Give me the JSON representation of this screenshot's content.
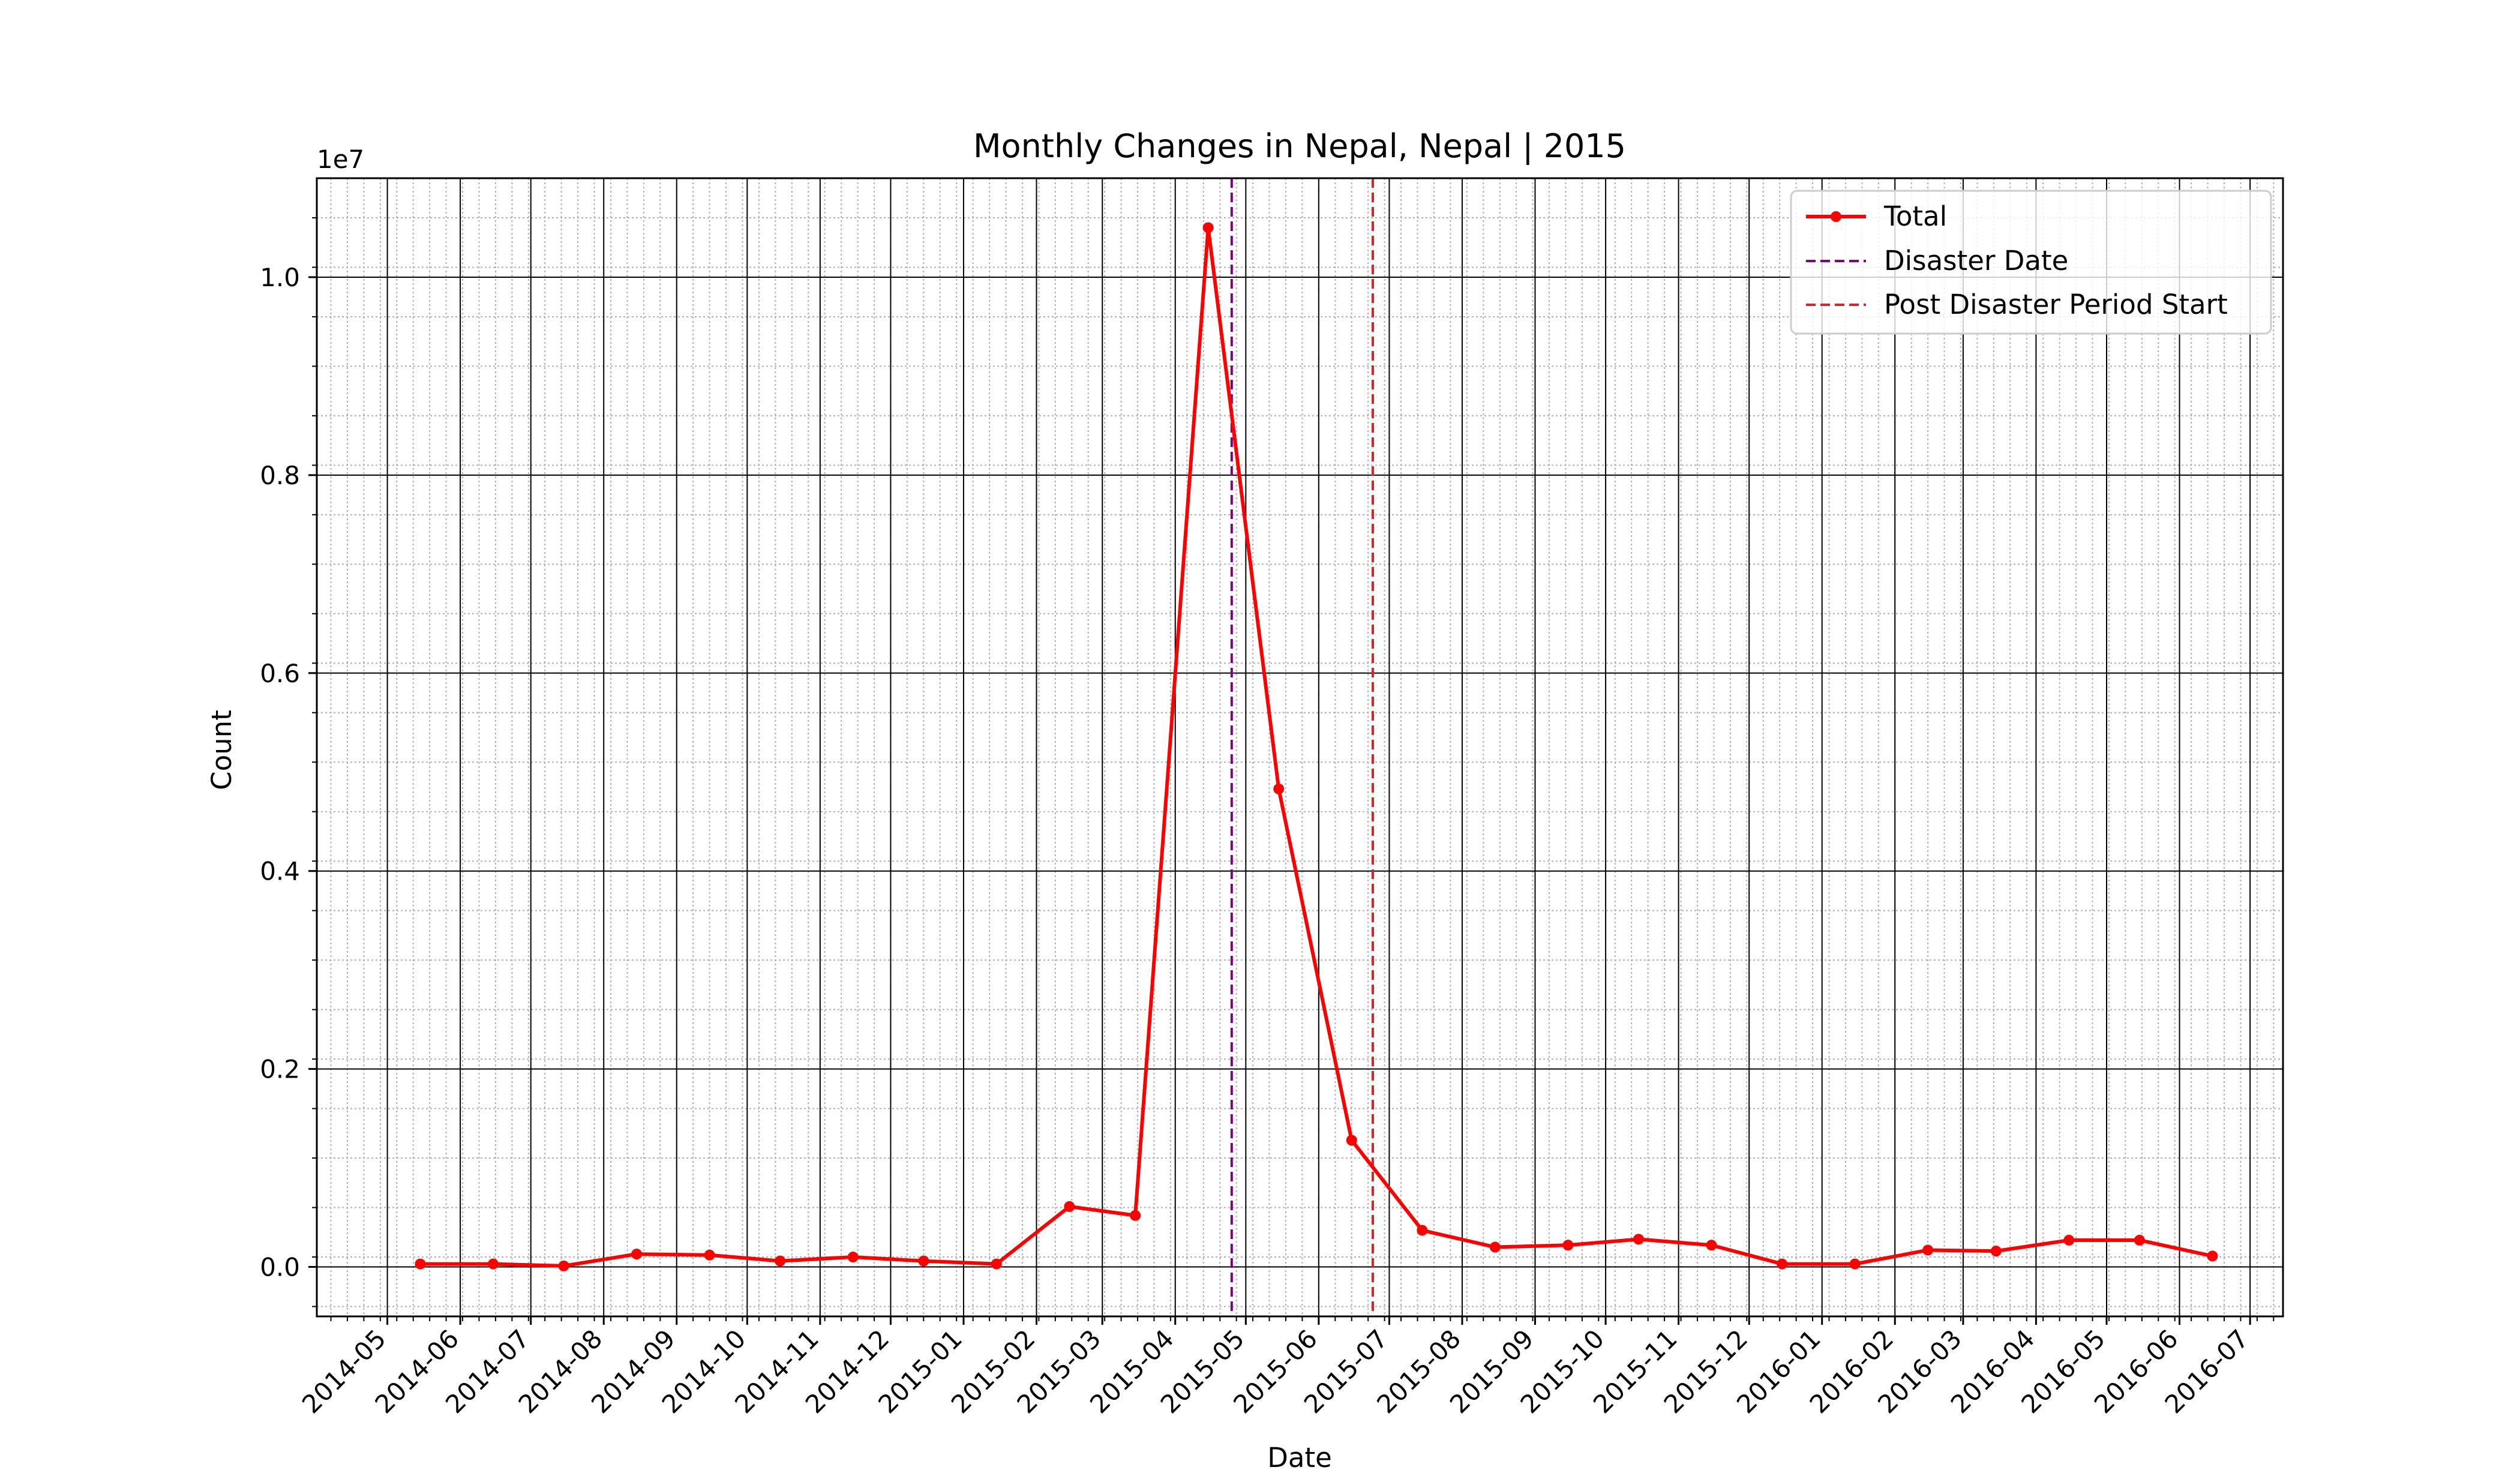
{
  "chart_data": {
    "type": "line",
    "title": "Monthly Changes in Nepal, Nepal | 2015",
    "xlabel": "Date",
    "ylabel": "Count",
    "y_offset_label": "1e7",
    "y_scale": 10000000,
    "ylim": [
      -500000,
      11000000
    ],
    "xlim": [
      "2014-04-01",
      "2016-07-15"
    ],
    "x_tick_labels": [
      "2014-05",
      "2014-06",
      "2014-07",
      "2014-08",
      "2014-09",
      "2014-10",
      "2014-11",
      "2014-12",
      "2015-01",
      "2015-02",
      "2015-03",
      "2015-04",
      "2015-05",
      "2015-06",
      "2015-07",
      "2015-08",
      "2015-09",
      "2015-10",
      "2015-11",
      "2015-12",
      "2016-01",
      "2016-02",
      "2016-03",
      "2016-04",
      "2016-05",
      "2016-06",
      "2016-07"
    ],
    "y_ticks": [
      0.0,
      0.2,
      0.4,
      0.6,
      0.8,
      1.0
    ],
    "grid": true,
    "legend_position": "top-right",
    "series": [
      {
        "name": "Total",
        "color": "#ff0000",
        "marker": "circle",
        "x": [
          "2014-05-15",
          "2014-06-15",
          "2014-07-15",
          "2014-08-15",
          "2014-09-15",
          "2014-10-15",
          "2014-11-15",
          "2014-12-15",
          "2015-01-15",
          "2015-02-15",
          "2015-03-15",
          "2015-04-15",
          "2015-05-15",
          "2015-06-15",
          "2015-07-15",
          "2015-08-15",
          "2015-09-15",
          "2015-10-15",
          "2015-11-15",
          "2015-12-15",
          "2016-01-15",
          "2016-02-15",
          "2016-03-15",
          "2016-04-15",
          "2016-05-15",
          "2016-06-15"
        ],
        "values": [
          30000,
          30000,
          10000,
          130000,
          120000,
          60000,
          100000,
          60000,
          30000,
          610000,
          520000,
          10500000,
          4830000,
          1280000,
          370000,
          200000,
          220000,
          280000,
          220000,
          30000,
          30000,
          170000,
          160000,
          270000,
          270000,
          110000
        ]
      }
    ],
    "vlines": [
      {
        "name": "Disaster Date",
        "x": "2015-04-25",
        "color": "#800080",
        "style": "dashed"
      },
      {
        "name": "Post Disaster Period Start",
        "x": "2015-06-24",
        "color": "#d62728",
        "style": "dashed"
      }
    ]
  }
}
